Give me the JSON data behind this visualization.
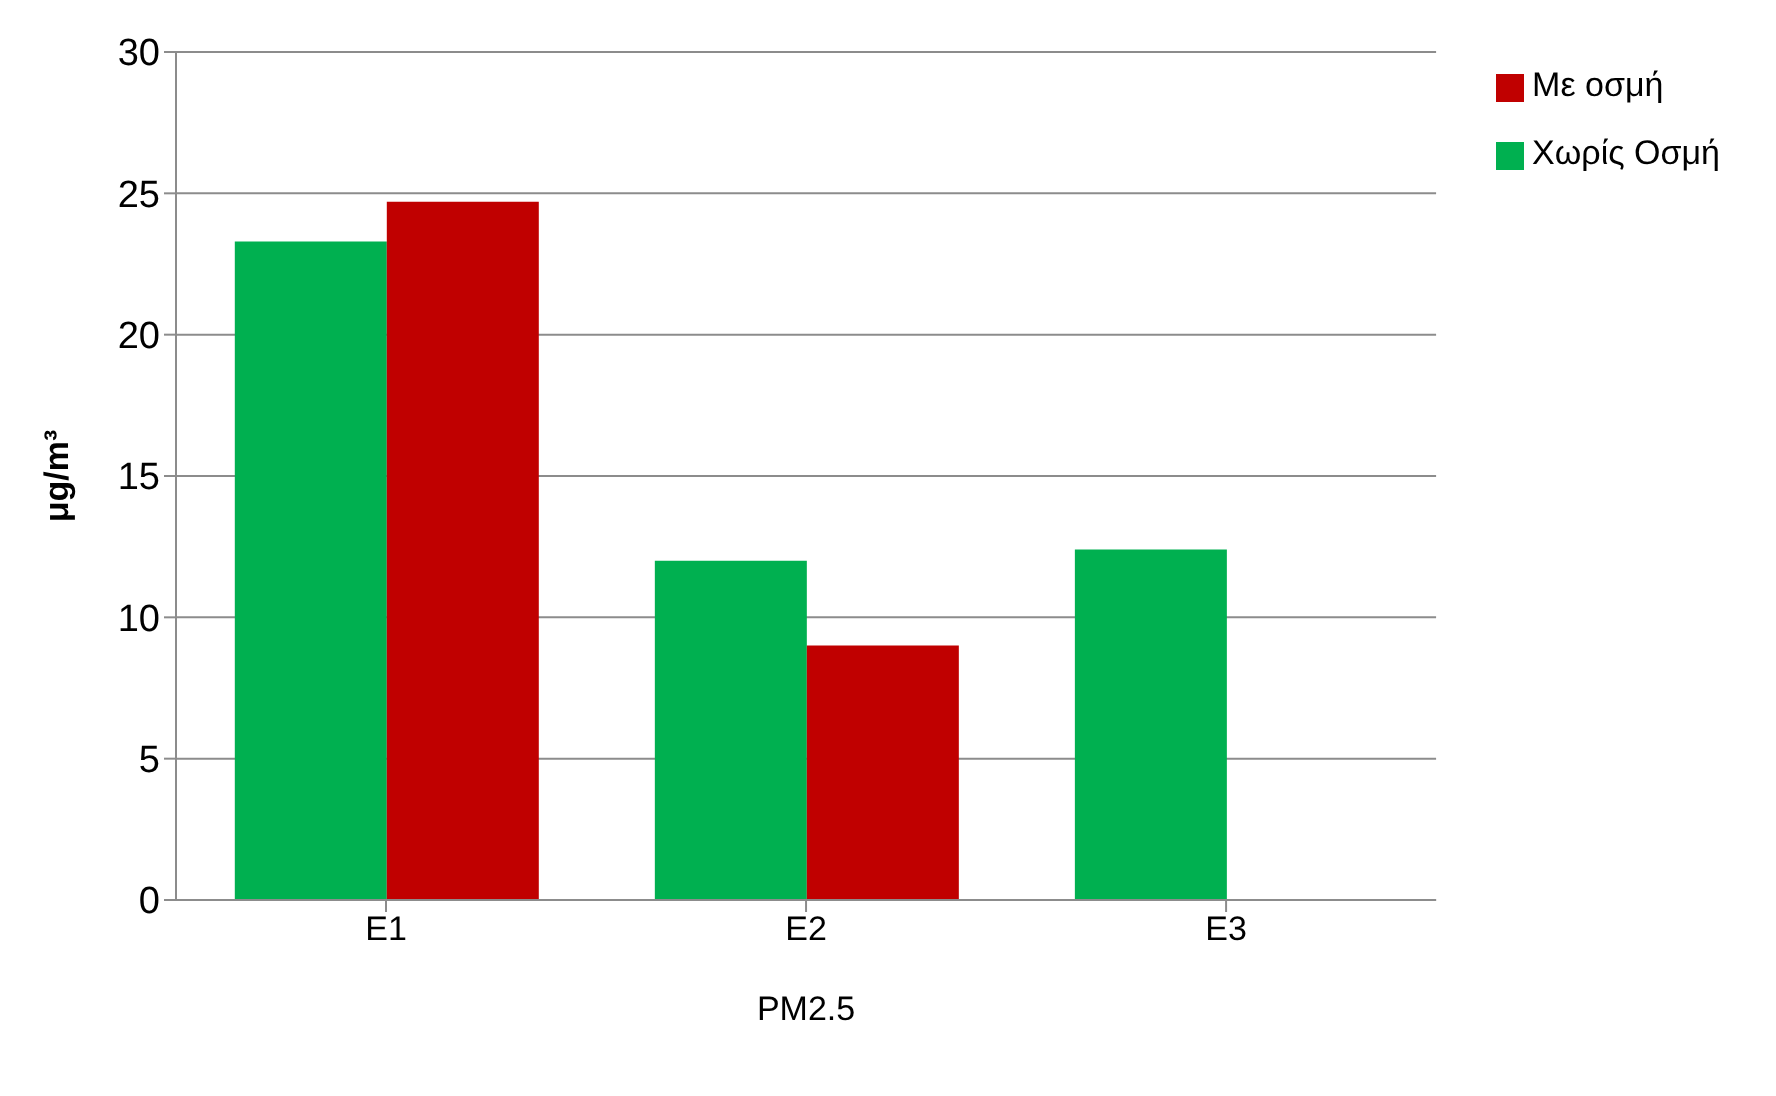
{
  "chart_data": {
    "type": "bar",
    "xlabel": "PM2.5",
    "ylabel": "μg/m³",
    "categories": [
      "E1",
      "E2",
      "E3"
    ],
    "series": [
      {
        "name": "Χωρίς Οσμή",
        "color": "#00b050",
        "values": [
          23.3,
          12.0,
          12.4
        ]
      },
      {
        "name": "Με οσμή",
        "color": "#c00000",
        "values": [
          24.7,
          9.0,
          null
        ]
      }
    ],
    "ylim": [
      0,
      30
    ],
    "yticks": [
      0,
      5,
      10,
      15,
      20,
      25,
      30
    ],
    "grid": "y",
    "legend": "top right"
  }
}
